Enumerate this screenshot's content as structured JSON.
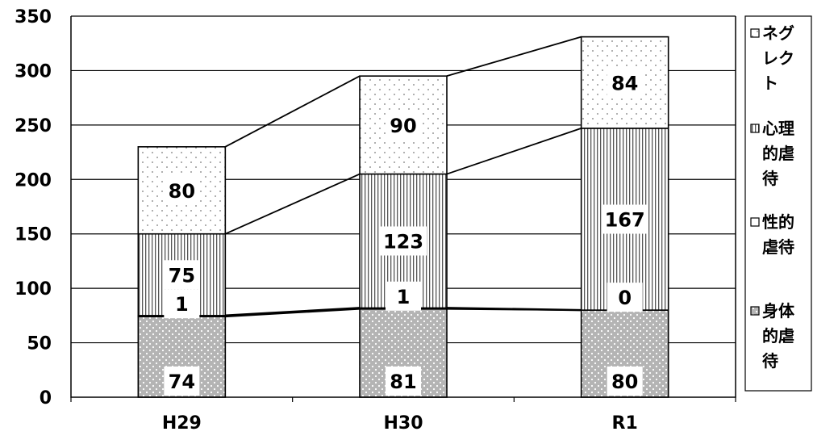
{
  "chart_data": {
    "type": "bar",
    "stacked": true,
    "categories": [
      "H29",
      "H30",
      "R1"
    ],
    "series": [
      {
        "name": "身体的虐待",
        "values": [
          74,
          81,
          80
        ],
        "pattern": "dots-on-gray"
      },
      {
        "name": "性的虐待",
        "values": [
          1,
          1,
          0
        ],
        "pattern": "none"
      },
      {
        "name": "心理的虐待",
        "values": [
          75,
          123,
          167
        ],
        "pattern": "vertical-lines"
      },
      {
        "name": "ネグレクト",
        "values": [
          80,
          90,
          84
        ],
        "pattern": "sparse-dots"
      }
    ],
    "ylim": [
      0,
      350
    ],
    "yticks": [
      "0",
      "50",
      "100",
      "150",
      "200",
      "250",
      "300",
      "350"
    ],
    "grid": true,
    "legend_position": "right",
    "series_lines": true,
    "colors": {
      "bar_outline": "#000000",
      "grid": "#000000",
      "segment_fill": "#ffffff",
      "body_fill": "#b4b4b4"
    }
  }
}
